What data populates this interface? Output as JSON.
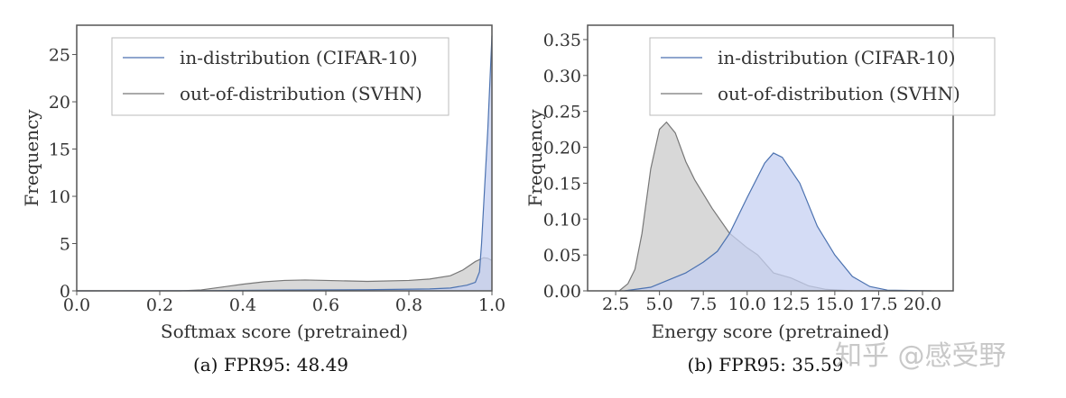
{
  "chart_data": [
    {
      "type": "area",
      "caption": "(a) FPR95: 48.49",
      "xlabel": "Softmax score (pretrained)",
      "ylabel": "Frequency",
      "xlim": [
        0,
        1
      ],
      "ylim": [
        0,
        28.1
      ],
      "xticks": [
        "0.0",
        "0.2",
        "0.4",
        "0.6",
        "0.8",
        "1.0"
      ],
      "xtick_values": [
        0,
        0.2,
        0.4,
        0.6,
        0.8,
        1.0
      ],
      "yticks": [
        "0",
        "5",
        "10",
        "15",
        "20",
        "25"
      ],
      "ytick_values": [
        0,
        5,
        10,
        15,
        20,
        25
      ],
      "grid": false,
      "legend": "top-right",
      "series": [
        {
          "name": "in-distribution (CIFAR-10)",
          "color": "#4c72b0",
          "fill": "#c5d0f2",
          "x": [
            0.0,
            0.3,
            0.5,
            0.7,
            0.85,
            0.9,
            0.94,
            0.96,
            0.97,
            0.975,
            0.98,
            0.99,
            1.0
          ],
          "y": [
            0,
            0.02,
            0.08,
            0.12,
            0.2,
            0.3,
            0.6,
            0.9,
            2,
            5,
            9,
            17,
            27
          ]
        },
        {
          "name": "out-of-distribution (SVHN)",
          "color": "#777777",
          "fill": "#d4d4d4",
          "x": [
            0.0,
            0.25,
            0.3,
            0.35,
            0.4,
            0.45,
            0.5,
            0.55,
            0.6,
            0.7,
            0.8,
            0.85,
            0.9,
            0.93,
            0.96,
            0.98,
            0.99,
            1.0
          ],
          "y": [
            0,
            0,
            0.1,
            0.4,
            0.7,
            0.95,
            1.1,
            1.15,
            1.1,
            1.0,
            1.1,
            1.25,
            1.6,
            2.2,
            3.1,
            3.5,
            3.45,
            3.2
          ]
        }
      ]
    },
    {
      "type": "area",
      "caption": "(b) FPR95: 35.59",
      "xlabel": "Energy score (pretrained)",
      "ylabel": "Frequency",
      "xlim": [
        0.9,
        21.75
      ],
      "ylim": [
        0,
        0.37
      ],
      "xticks": [
        "2.5",
        "5.0",
        "7.5",
        "10.0",
        "12.5",
        "15.0",
        "17.5",
        "20.0"
      ],
      "xtick_values": [
        2.5,
        5,
        7.5,
        10,
        12.5,
        15,
        17.5,
        20
      ],
      "yticks": [
        "0.00",
        "0.05",
        "0.10",
        "0.15",
        "0.20",
        "0.25",
        "0.30",
        "0.35"
      ],
      "ytick_values": [
        0,
        0.05,
        0.1,
        0.15,
        0.2,
        0.25,
        0.3,
        0.35
      ],
      "grid": false,
      "legend": "top-right",
      "series": [
        {
          "name": "in-distribution (CIFAR-10)",
          "color": "#4c72b0",
          "fill": "#c5d0f2",
          "x": [
            3,
            4.5,
            5.5,
            6.5,
            7.5,
            8.3,
            9,
            10,
            11,
            11.5,
            12,
            13,
            14,
            15,
            16,
            17,
            18,
            20.5
          ],
          "y": [
            0,
            0.005,
            0.015,
            0.025,
            0.04,
            0.055,
            0.08,
            0.13,
            0.178,
            0.192,
            0.186,
            0.15,
            0.09,
            0.05,
            0.02,
            0.006,
            0.001,
            0
          ]
        },
        {
          "name": "out-of-distribution (SVHN)",
          "color": "#777777",
          "fill": "#d4d4d4",
          "x": [
            2.7,
            3.2,
            3.6,
            4.0,
            4.5,
            5.0,
            5.4,
            5.9,
            6.5,
            7.0,
            8.0,
            9.0,
            10.0,
            10.6,
            11.5,
            12.5,
            13.5,
            14.5,
            16
          ],
          "y": [
            0,
            0.01,
            0.03,
            0.08,
            0.17,
            0.225,
            0.235,
            0.22,
            0.18,
            0.155,
            0.115,
            0.08,
            0.06,
            0.05,
            0.025,
            0.018,
            0.007,
            0.002,
            0
          ]
        }
      ]
    }
  ],
  "watermark": "知乎 @感受野"
}
